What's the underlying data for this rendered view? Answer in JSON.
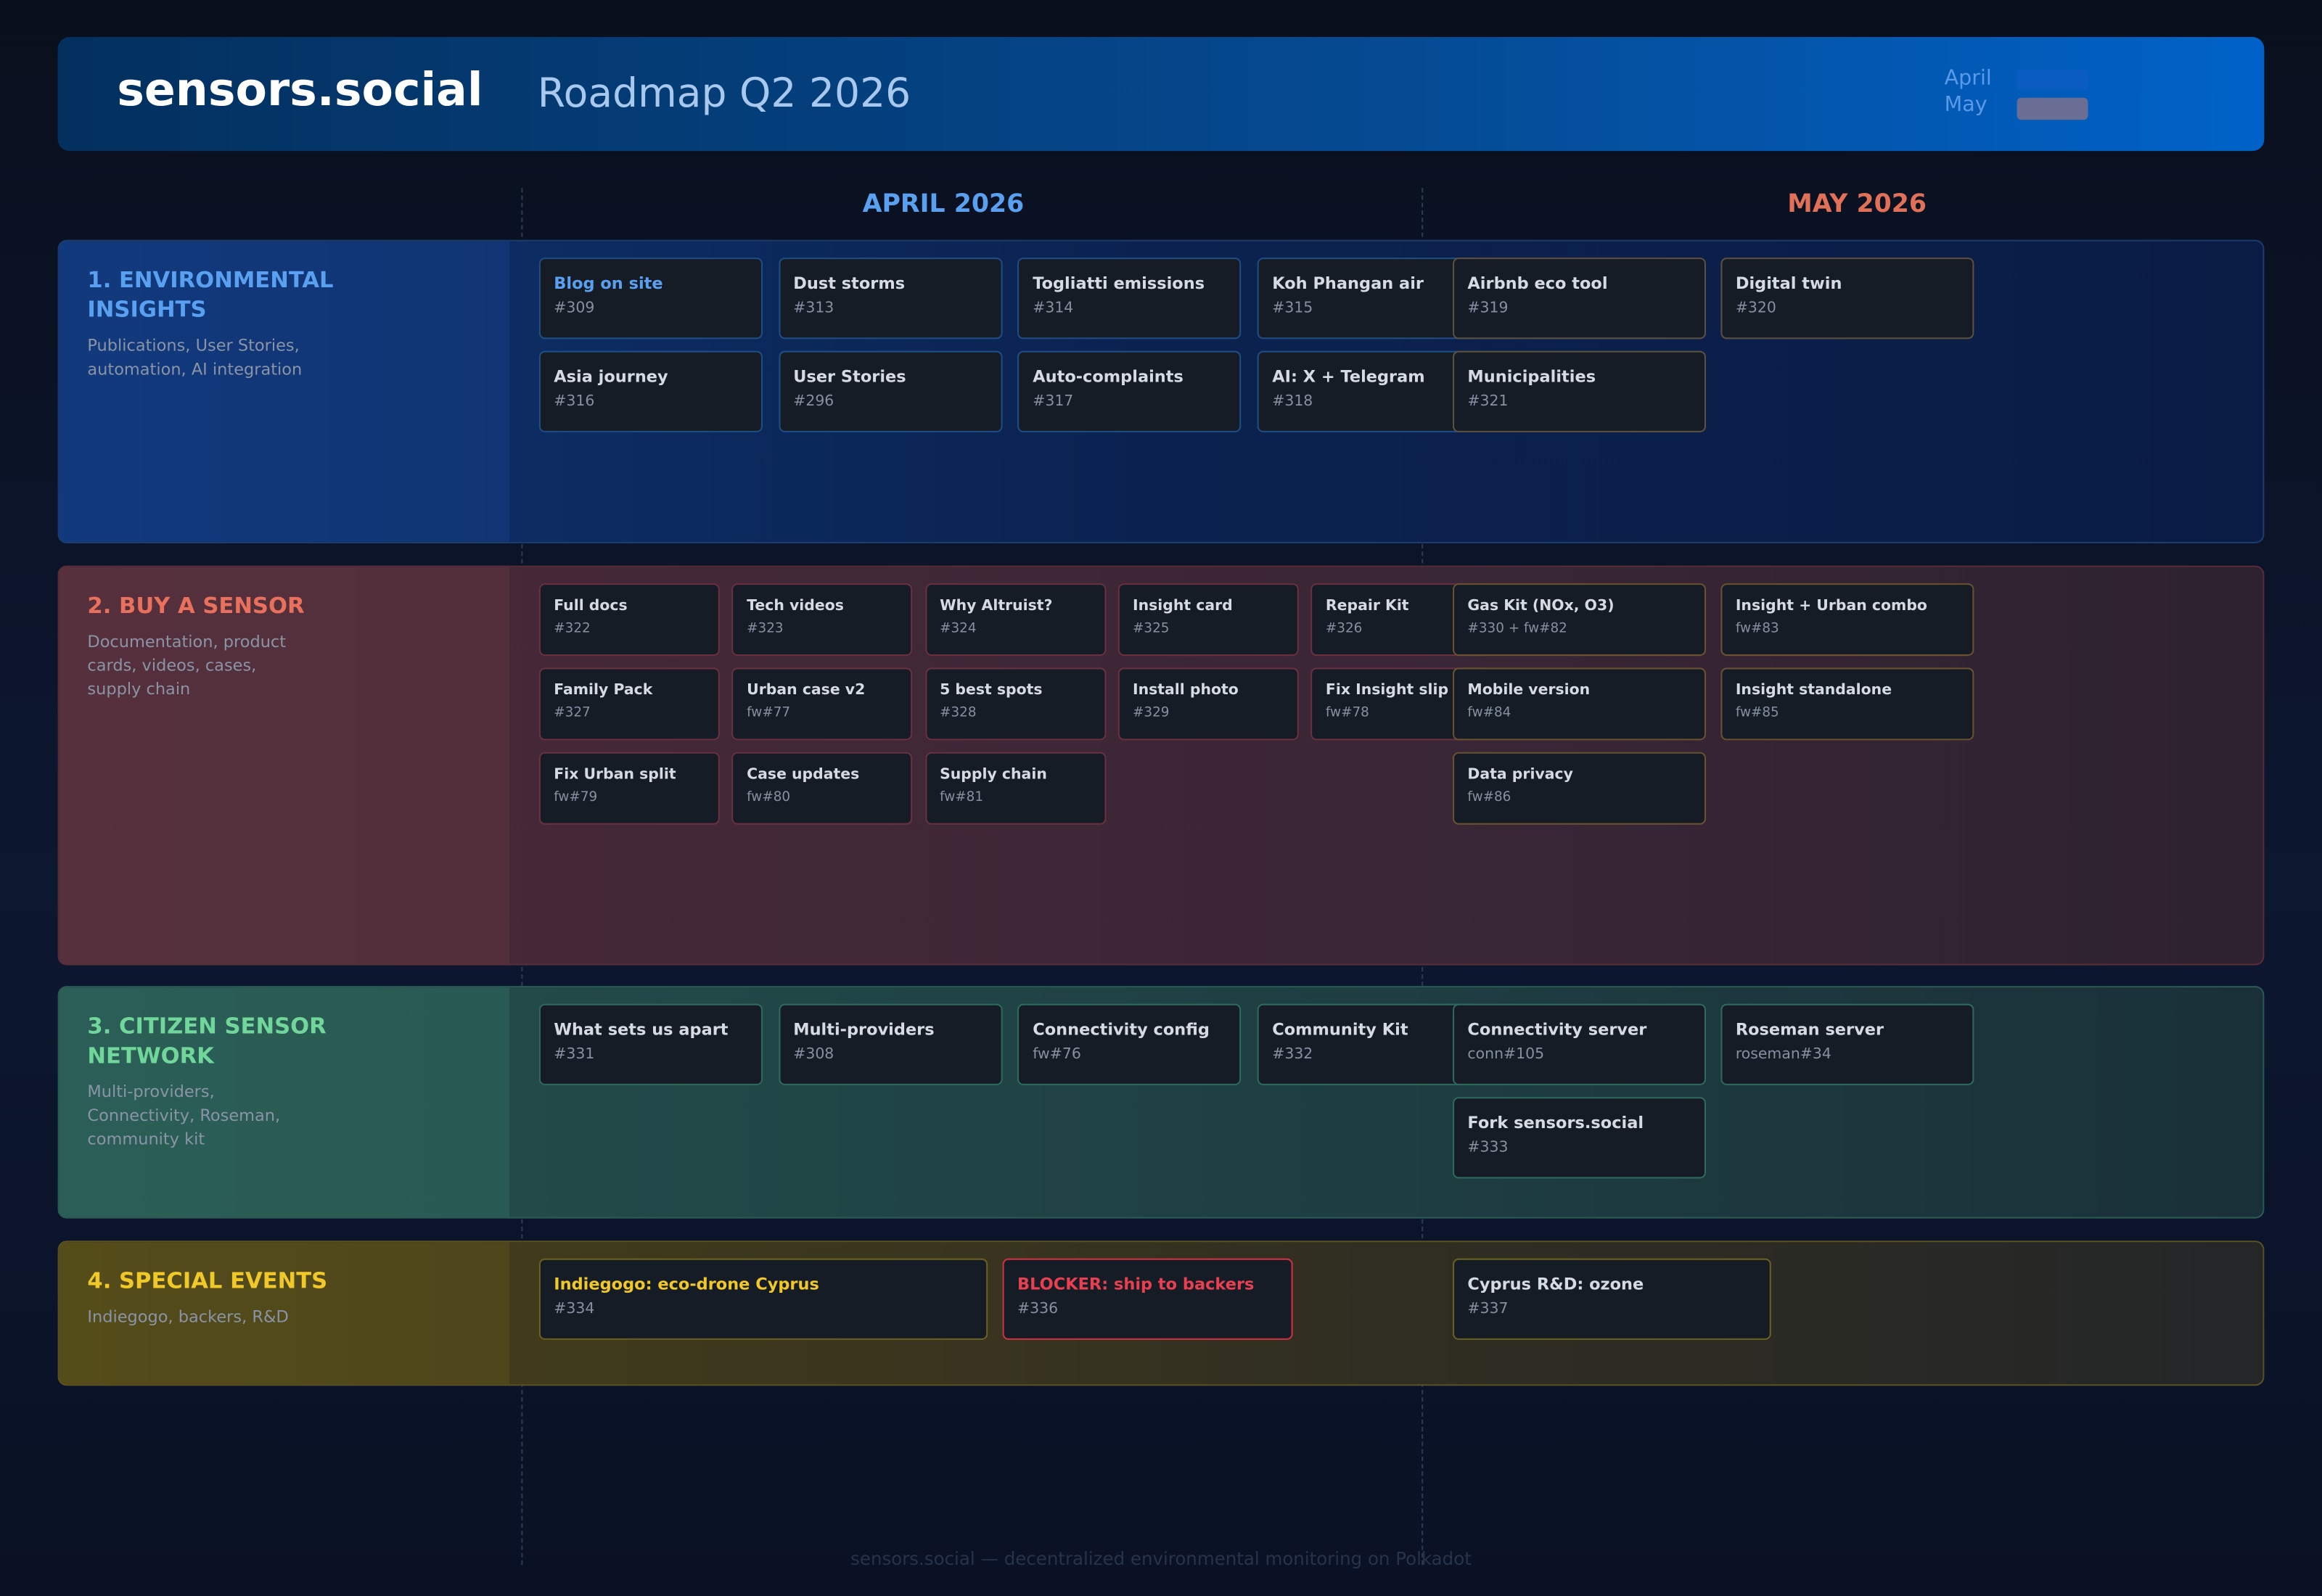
{
  "header": {
    "brand": "sensors.social",
    "title": "Roadmap Q2 2026",
    "legend": [
      "April",
      "May"
    ]
  },
  "months": [
    "APRIL 2026",
    "MAY 2026"
  ],
  "lanes": [
    {
      "title": "1. ENVIRONMENTAL INSIGHTS",
      "description": "Publications, User Stories, automation, AI integration",
      "april": [
        {
          "title": "Blog on site",
          "id": "#309"
        },
        {
          "title": "Dust storms",
          "id": "#313"
        },
        {
          "title": "Togliatti emissions",
          "id": "#314"
        },
        {
          "title": "Koh Phangan air",
          "id": "#315"
        },
        {
          "title": "Asia journey",
          "id": "#316"
        },
        {
          "title": "User Stories",
          "id": "#296"
        },
        {
          "title": "Auto-complaints",
          "id": "#317"
        },
        {
          "title": "AI: X + Telegram",
          "id": "#318"
        }
      ],
      "may": [
        {
          "title": "Airbnb eco tool",
          "id": "#319"
        },
        {
          "title": "Digital twin",
          "id": "#320"
        },
        {
          "title": "Municipalities",
          "id": "#321"
        }
      ]
    },
    {
      "title": "2. BUY A SENSOR",
      "description": "Documentation, product cards, videos, cases, supply chain",
      "april": [
        {
          "title": "Full docs",
          "id": "#322"
        },
        {
          "title": "Tech videos",
          "id": "#323"
        },
        {
          "title": "Why Altruist?",
          "id": "#324"
        },
        {
          "title": "Insight card",
          "id": "#325"
        },
        {
          "title": "Repair Kit",
          "id": "#326"
        },
        {
          "title": "Family Pack",
          "id": "#327"
        },
        {
          "title": "Urban case v2",
          "id": "fw#77"
        },
        {
          "title": "5 best spots",
          "id": "#328"
        },
        {
          "title": "Install photo",
          "id": "#329"
        },
        {
          "title": "Fix Insight slip",
          "id": "fw#78"
        },
        {
          "title": "Fix Urban split",
          "id": "fw#79"
        },
        {
          "title": "Case updates",
          "id": "fw#80"
        },
        {
          "title": "Supply chain",
          "id": "fw#81"
        }
      ],
      "may": [
        {
          "title": "Gas Kit (NOx, O3)",
          "id": "#330 + fw#82"
        },
        {
          "title": "Insight + Urban combo",
          "id": "fw#83"
        },
        {
          "title": "Mobile version",
          "id": "fw#84"
        },
        {
          "title": "Insight standalone",
          "id": "fw#85"
        },
        {
          "title": "Data privacy",
          "id": "fw#86"
        }
      ]
    },
    {
      "title": "3. CITIZEN SENSOR NETWORK",
      "description": "Multi-providers, Connectivity, Roseman, community kit",
      "april": [
        {
          "title": "What sets us apart",
          "id": "#331"
        },
        {
          "title": "Multi-providers",
          "id": "#308"
        },
        {
          "title": "Connectivity config",
          "id": "fw#76"
        },
        {
          "title": "Community Kit",
          "id": "#332"
        }
      ],
      "may": [
        {
          "title": "Connectivity server",
          "id": "conn#105"
        },
        {
          "title": "Roseman server",
          "id": "roseman#34"
        },
        {
          "title": "Fork sensors.social",
          "id": "#333"
        }
      ]
    },
    {
      "title": "4. SPECIAL EVENTS",
      "description": "Indiegogo, backers, R&D",
      "april": [
        {
          "title": "Indiegogo: eco-drone Cyprus",
          "id": "#334"
        },
        {
          "title": "BLOCKER: ship to backers",
          "id": "#336"
        }
      ],
      "may": [
        {
          "title": "Cyprus R&D: ozone",
          "id": "#337"
        }
      ]
    }
  ],
  "footer": "sensors.social — decentralized environmental monitoring on Polkadot"
}
